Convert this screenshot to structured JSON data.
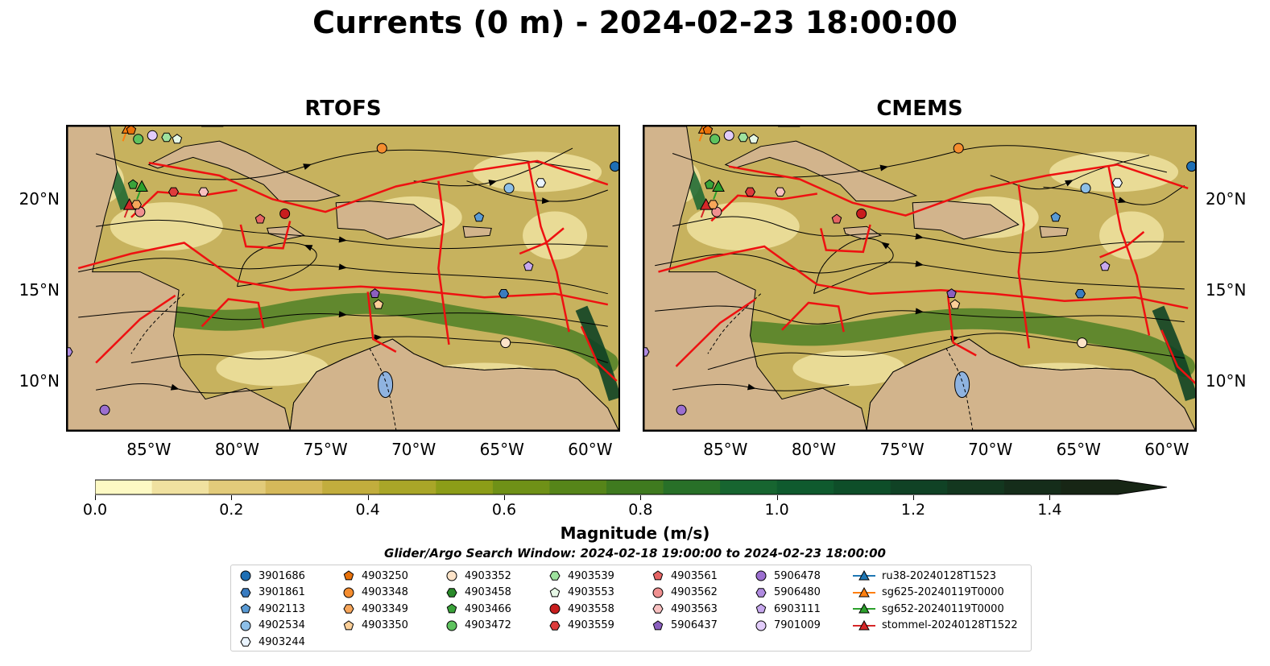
{
  "title": "Currents (0 m) - 2024-02-23 18:00:00",
  "panels": [
    {
      "title": "RTOFS"
    },
    {
      "title": "CMEMS"
    }
  ],
  "axes": {
    "lon_ticks": [
      "85°W",
      "80°W",
      "75°W",
      "70°W",
      "65°W",
      "60°W"
    ],
    "lat_ticks": [
      "20°N",
      "15°N",
      "10°N"
    ],
    "lon_values": [
      -85,
      -80,
      -75,
      -70,
      -65,
      -60
    ],
    "lat_values": [
      20,
      15,
      10
    ],
    "lon_range": [
      -89.6,
      -58.4
    ],
    "lat_range": [
      7.3,
      24.0
    ]
  },
  "colorbar": {
    "label": "Magnitude (m/s)",
    "ticks": [
      "0.0",
      "0.2",
      "0.4",
      "0.6",
      "0.8",
      "1.0",
      "1.2",
      "1.4"
    ],
    "tick_values": [
      0,
      0.2,
      0.4,
      0.6,
      0.8,
      1.0,
      1.2,
      1.4
    ],
    "range": [
      0,
      1.5
    ],
    "extend": "max",
    "colors": [
      "#fdf9c4",
      "#f0e1a0",
      "#e2cb7a",
      "#d5b95a",
      "#c2ad3d",
      "#a9a628",
      "#8c9d18",
      "#6f9117",
      "#568519",
      "#3f7a1f",
      "#287028",
      "#176530",
      "#0f5a2e",
      "#0e4e29",
      "#104225",
      "#13371f",
      "#152d1a",
      "#172615"
    ]
  },
  "search_window": "Glider/Argo Search Window: 2024-02-18 19:00:00 to 2024-02-23 18:00:00",
  "legend": [
    {
      "label": "3901686",
      "marker": "circle",
      "color": "#1f6fb4"
    },
    {
      "label": "3901861",
      "marker": "hexagon",
      "color": "#3a7cc0"
    },
    {
      "label": "4902113",
      "marker": "pentagon",
      "color": "#5a9bd5"
    },
    {
      "label": "4902534",
      "marker": "circle",
      "color": "#8dbfe8"
    },
    {
      "label": "4903244",
      "marker": "hexagon",
      "color": "#eaf4ff"
    },
    {
      "label": "4903250",
      "marker": "pentagon",
      "color": "#e8710a"
    },
    {
      "label": "4903348",
      "marker": "circle",
      "color": "#f58d2f"
    },
    {
      "label": "4903349",
      "marker": "hexagon",
      "color": "#f7a65a"
    },
    {
      "label": "4903350",
      "marker": "pentagon",
      "color": "#fbcf98"
    },
    {
      "label": "4903352",
      "marker": "circle",
      "color": "#fde3c8"
    },
    {
      "label": "4903458",
      "marker": "hexagon",
      "color": "#2a8a2a"
    },
    {
      "label": "4903466",
      "marker": "pentagon",
      "color": "#3aa33a"
    },
    {
      "label": "4903472",
      "marker": "circle",
      "color": "#5ec25e"
    },
    {
      "label": "4903539",
      "marker": "hexagon",
      "color": "#9ee29e"
    },
    {
      "label": "4903553",
      "marker": "pentagon",
      "color": "#e6f8e6"
    },
    {
      "label": "4903558",
      "marker": "circle",
      "color": "#c81e1e"
    },
    {
      "label": "4903559",
      "marker": "hexagon",
      "color": "#dd3c3c"
    },
    {
      "label": "4903561",
      "marker": "pentagon",
      "color": "#e66464"
    },
    {
      "label": "4903562",
      "marker": "circle",
      "color": "#f09090"
    },
    {
      "label": "4903563",
      "marker": "hexagon",
      "color": "#f8c0c0"
    },
    {
      "label": "5906437",
      "marker": "pentagon",
      "color": "#8b5fbf"
    },
    {
      "label": "5906478",
      "marker": "circle",
      "color": "#9c6fd0"
    },
    {
      "label": "5906480",
      "marker": "hexagon",
      "color": "#b08be0"
    },
    {
      "label": "6903111",
      "marker": "pentagon",
      "color": "#c7a8ee"
    },
    {
      "label": "7901009",
      "marker": "circle",
      "color": "#e2ccfa"
    },
    {
      "label": "ru38-20240128T1523",
      "marker": "triangle-line",
      "color": "#1f77b4"
    },
    {
      "label": "sg625-20240119T0000",
      "marker": "triangle-line",
      "color": "#ff7f0e"
    },
    {
      "label": "sg652-20240119T0000",
      "marker": "triangle-line",
      "color": "#2ca02c"
    },
    {
      "label": "stommel-20240128T1522",
      "marker": "triangle-line",
      "color": "#d62728"
    }
  ],
  "floats": [
    {
      "id": "3901686",
      "lon": -58.6,
      "lat": 21.8
    },
    {
      "id": "3901861",
      "lon": -64.9,
      "lat": 14.8
    },
    {
      "id": "4902113",
      "lon": -66.3,
      "lat": 19.0
    },
    {
      "id": "4902534",
      "lon": -64.6,
      "lat": 20.6
    },
    {
      "id": "4903244",
      "lon": -62.8,
      "lat": 20.9
    },
    {
      "id": "4903250",
      "lon": -86.0,
      "lat": 23.8
    },
    {
      "id": "4903348",
      "lon": -71.8,
      "lat": 22.8
    },
    {
      "id": "4903350",
      "lon": -72.0,
      "lat": 14.2
    },
    {
      "id": "4903352",
      "lon": -64.8,
      "lat": 12.1
    },
    {
      "id": "4903466",
      "lon": -85.9,
      "lat": 20.8
    },
    {
      "id": "4903472",
      "lon": -85.6,
      "lat": 23.3
    },
    {
      "id": "4903539",
      "lon": -84.0,
      "lat": 23.4
    },
    {
      "id": "4903553",
      "lon": -83.4,
      "lat": 23.3
    },
    {
      "id": "4903558",
      "lon": -77.3,
      "lat": 19.2
    },
    {
      "id": "4903559",
      "lon": -83.6,
      "lat": 20.4
    },
    {
      "id": "4903561",
      "lon": -78.7,
      "lat": 18.9
    },
    {
      "id": "4903562",
      "lon": -85.5,
      "lat": 19.3
    },
    {
      "id": "4903563",
      "lon": -81.9,
      "lat": 20.4
    },
    {
      "id": "5906437",
      "lon": -72.2,
      "lat": 14.8
    },
    {
      "id": "5906478",
      "lon": -87.5,
      "lat": 8.4
    },
    {
      "id": "6903111",
      "lon": -63.5,
      "lat": 16.3
    },
    {
      "id": "7901009",
      "lon": -84.8,
      "lat": 23.5
    },
    {
      "id": "5906480",
      "lon": -89.6,
      "lat": 11.6
    },
    {
      "id": "4903349",
      "lon": -85.7,
      "lat": 19.7
    }
  ],
  "gliders": [
    {
      "id": "sg652-20240119T0000",
      "lon": -85.4,
      "lat": 20.7
    },
    {
      "id": "stommel-20240128T1522",
      "lon": -86.1,
      "lat": 19.7
    },
    {
      "id": "sg625-20240119T0000",
      "lon": -86.2,
      "lat": 23.9
    }
  ]
}
